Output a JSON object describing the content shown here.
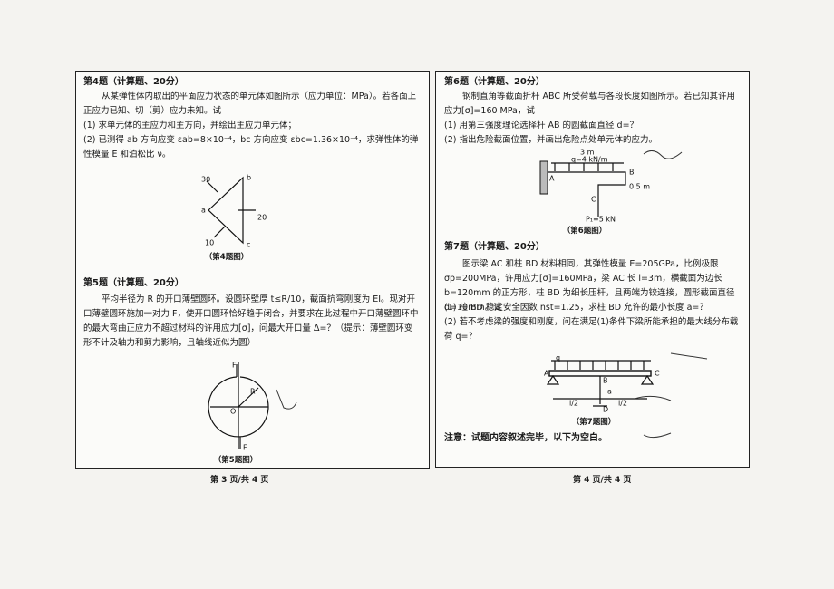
{
  "left_page": {
    "q4": {
      "heading": "第4题（计算题、20分）",
      "paragraphs": [
        "从某弹性体内取出的平面应力状态的单元体如图所示（应力单位：MPa）。若各面上正应力已知、切（剪）应力未知。试",
        "(1) 求单元体的主应力和主方向，并绘出主应力单元体；",
        "(2) 已测得 ab 方向应变 εab=8×10⁻⁴，bc 方向应变 εbc=1.36×10⁻⁴，求弹性体的弹性模量 E 和泊松比 ν。"
      ],
      "figure_labels": [
        "30",
        "20",
        "10",
        "a",
        "b",
        "c"
      ],
      "caption": "（第4题图）"
    },
    "q5": {
      "heading": "第5题（计算题、20分）",
      "paragraphs": [
        "平均半径为 R 的开口薄壁圆环。设圆环壁厚 t≤R/10，截面抗弯刚度为 EI。现对开口薄壁圆环施加一对力 F，使开口圆环恰好趋于闭合，并要求在此过程中开口薄壁圆环中的最大弯曲正应力不超过材料的许用应力[σ]，问最大开口量 Δ=？（提示：薄壁圆环变形不计及轴力和剪力影响，且轴线近似为圆）"
      ],
      "figure_labels": [
        "F",
        "F",
        "O",
        "R"
      ],
      "caption": "（第5题图）"
    },
    "footer": "第 3 页/共 4 页"
  },
  "right_page": {
    "q6": {
      "heading": "第6题（计算题、20分）",
      "paragraphs": [
        "钢制直角等截面折杆 ABC 所受荷载与各段长度如图所示。若已知其许用应力[σ]=160 MPa，试",
        "(1) 用第三强度理论选择杆 AB 的圆截面直径 d=？",
        "(2) 指出危险截面位置，并画出危险点处单元体的应力。"
      ],
      "figure_labels": [
        "3 m",
        "q=4 kN/m",
        "A",
        "B",
        "C",
        "0.5 m",
        "P₁=5 kN"
      ],
      "caption": "（第6题图）"
    },
    "q7": {
      "heading": "第7题（计算题、20分）",
      "paragraphs": [
        "图示梁 AC 和柱 BD 材料相同，其弹性模量 E=205GPa，比例极限 σp=200MPa，许用应力[σ]=160MPa，梁 AC 长 l=3m，横截面为边长 b=120mm 的正方形，柱 BD 为细长压杆，且两端为铰连接，圆形截面直径 d=10mm。试",
        "(1) 柱 BD 稳定安全因数 nst=1.25，求柱 BD 允许的最小长度 a=？",
        "(2) 若不考虑梁的强度和刚度，问在满足(1)条件下梁所能承担的最大线分布载荷 q=？"
      ],
      "figure_labels": [
        "q",
        "A",
        "B",
        "C",
        "D",
        "a",
        "l/2",
        "l/2"
      ],
      "caption": "（第7题图）"
    },
    "note": "注意：试题内容叙述完毕，以下为空白。",
    "footer": "第 4 页/共 4 页"
  }
}
